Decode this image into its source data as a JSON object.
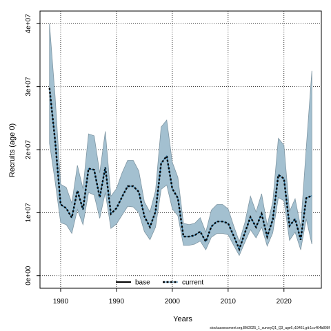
{
  "chart_data": {
    "type": "area",
    "xlabel": "Years",
    "ylabel": "Recruits (age 0)",
    "xlim": [
      1976.3,
      2026.7
    ],
    "ylim": [
      -2000000,
      42000000
    ],
    "x_ticks": [
      1980,
      1990,
      2000,
      2010,
      2020
    ],
    "y_ticks": [
      0,
      10000000,
      20000000,
      30000000,
      40000000
    ],
    "y_tick_labels": [
      "0e+00",
      "1e+07",
      "2e+07",
      "3e+07",
      "4e+07"
    ],
    "grid": true,
    "legend_position": "bottom",
    "band_color": "#a3c0d0",
    "band_edge_color": "#7f96a3",
    "series": [
      {
        "name": "base",
        "style": "solid",
        "color": "#000000",
        "x": [],
        "values": []
      },
      {
        "name": "current",
        "style": "dashed",
        "color": "#000000",
        "accent": "#1f6fa0",
        "x": [
          1978,
          1979,
          1980,
          1981,
          1982,
          1983,
          1984,
          1985,
          1986,
          1987,
          1988,
          1989,
          1990,
          1991,
          1992,
          1993,
          1994,
          1995,
          1996,
          1997,
          1998,
          1999,
          2000,
          2001,
          2002,
          2003,
          2004,
          2005,
          2006,
          2007,
          2008,
          2009,
          2010,
          2011,
          2012,
          2013,
          2014,
          2015,
          2016,
          2017,
          2018,
          2019,
          2020,
          2021,
          2022,
          2023,
          2024,
          2025
        ],
        "values": [
          29800000,
          21500000,
          11300000,
          10700000,
          9200000,
          13500000,
          10500000,
          17000000,
          16800000,
          12400000,
          17200000,
          9800000,
          10700000,
          12500000,
          14200000,
          14200000,
          13300000,
          9400000,
          7700000,
          10200000,
          17800000,
          19000000,
          13800000,
          12300000,
          6200000,
          6200000,
          6400000,
          7000000,
          5400000,
          7800000,
          8600000,
          8600000,
          8300000,
          6300000,
          4200000,
          6800000,
          9300000,
          7700000,
          9800000,
          6200000,
          8900000,
          16000000,
          15400000,
          7900000,
          9000000,
          5700000,
          12300000,
          12700000
        ],
        "lower": [
          21000000,
          15000000,
          8400000,
          8100000,
          6700000,
          10500000,
          8100000,
          13200000,
          12800000,
          9100000,
          13200000,
          7500000,
          8200000,
          9600000,
          11000000,
          10900000,
          10000000,
          7000000,
          5700000,
          7700000,
          13700000,
          14400000,
          10600000,
          9500000,
          4800000,
          4800000,
          5000000,
          5500000,
          4100000,
          6100000,
          6700000,
          6700000,
          6500000,
          4800000,
          3200000,
          5300000,
          7300000,
          6000000,
          7700000,
          4700000,
          6800000,
          12400000,
          11900000,
          5600000,
          6900000,
          4100000,
          9000000,
          5000000
        ],
        "upper": [
          40000000,
          28500000,
          14500000,
          14000000,
          11500000,
          17500000,
          13800000,
          22500000,
          22200000,
          16300000,
          22900000,
          12600000,
          13800000,
          16300000,
          18300000,
          18300000,
          16600000,
          11700000,
          10100000,
          13500000,
          23600000,
          24700000,
          18000000,
          15600000,
          8300000,
          8100000,
          8300000,
          9200000,
          6900000,
          10400000,
          11300000,
          11300000,
          10600000,
          7900000,
          5400000,
          8400000,
          12600000,
          10100000,
          13000000,
          8000000,
          11700000,
          21800000,
          20700000,
          10200000,
          12200000,
          7700000,
          20300000,
          32500000
        ]
      }
    ]
  },
  "footer": {
    "text": "stockassessment.org,BM2025_1_surveyQ1_Q3_age6,r19461,git:1cc464b808f"
  }
}
